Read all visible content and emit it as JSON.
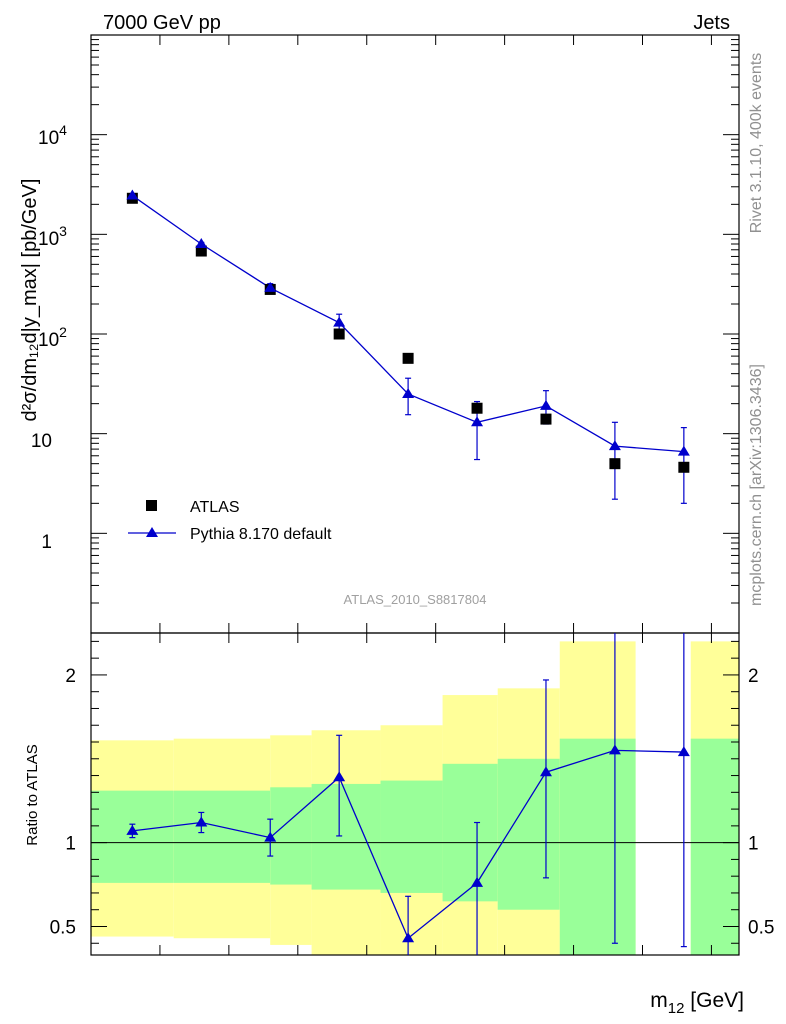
{
  "header": {
    "left": "7000 GeV pp",
    "right": "Jets"
  },
  "side_labels": {
    "rivet": "Rivet 3.1.10,  400k events",
    "mcplots": "mcplots.cern.ch [arXiv:1306.3436]"
  },
  "analysis_id": "ATLAS_2010_S8817804",
  "chart_data": {
    "type": "scatter",
    "main": {
      "ylabel": "d²σ/dm₁₂d|y_max| [pb/GeV]",
      "yscale": "log",
      "ylim": [
        0.1,
        100000
      ],
      "ytick_values": [
        1,
        10,
        100,
        1000,
        10000
      ],
      "ytick_labels": {
        "t1": "1",
        "t10": "10",
        "t100_base": "10",
        "t100_exp": "2",
        "t1000_base": "10",
        "t1000_exp": "3",
        "t10000_base": "10",
        "t10000_exp": "4"
      },
      "series": [
        {
          "name": "ATLAS",
          "marker": "square",
          "color": "#000000",
          "x": [
            1,
            2,
            3,
            4,
            5,
            6,
            7,
            8,
            9
          ],
          "values": [
            2300,
            680,
            280,
            100,
            57,
            18,
            14,
            5.0,
            4.6
          ]
        },
        {
          "name": "Pythia 8.170 default",
          "marker": "triangle",
          "color": "#0000cc",
          "x": [
            1,
            2,
            3,
            4,
            5,
            6,
            7,
            8,
            9
          ],
          "values": [
            2450,
            800,
            290,
            130,
            25,
            13,
            19,
            7.5,
            6.6
          ],
          "err_low": [
            2350,
            770,
            265,
            112,
            15.5,
            5.5,
            12.5,
            2.2,
            2.0
          ],
          "err_high": [
            2550,
            830,
            320,
            158,
            36,
            21,
            27,
            13,
            11.5
          ]
        }
      ]
    },
    "ratio": {
      "ylabel": "Ratio to ATLAS",
      "ylim": [
        0.33,
        2.25
      ],
      "ytick_values": [
        0.5,
        1,
        2
      ],
      "ytick_labels": [
        "0.5",
        "1",
        "2"
      ],
      "xlabel_base": "m",
      "xlabel_sub": "12",
      "xlabel_unit": " [GeV]",
      "reference": 1,
      "pythia_ratio": {
        "x": [
          1,
          2,
          3,
          4,
          5,
          6,
          7,
          8,
          9
        ],
        "values": [
          1.07,
          1.12,
          1.03,
          1.39,
          0.43,
          0.76,
          1.42,
          1.55,
          1.54
        ],
        "err_low": [
          1.03,
          1.06,
          0.92,
          1.04,
          0.28,
          0.25,
          0.79,
          0.4,
          0.38
        ],
        "err_high": [
          1.11,
          1.18,
          1.14,
          1.64,
          0.68,
          1.12,
          1.97,
          2.4,
          2.4
        ]
      },
      "bands": [
        {
          "bin": [
            0.4,
            1.6
          ],
          "green": [
            0.76,
            1.31
          ],
          "yellow": [
            0.44,
            1.61
          ]
        },
        {
          "bin": [
            1.6,
            3.0
          ],
          "green": [
            0.76,
            1.31
          ],
          "yellow": [
            0.43,
            1.62
          ]
        },
        {
          "bin": [
            3.0,
            3.6
          ],
          "green": [
            0.75,
            1.33
          ],
          "yellow": [
            0.39,
            1.64
          ]
        },
        {
          "bin": [
            3.6,
            4.6
          ],
          "green": [
            0.72,
            1.35
          ],
          "yellow": [
            0.33,
            1.67
          ]
        },
        {
          "bin": [
            4.6,
            5.5
          ],
          "green": [
            0.7,
            1.37
          ],
          "yellow": [
            0.33,
            1.7
          ]
        },
        {
          "bin": [
            5.5,
            6.3
          ],
          "green": [
            0.65,
            1.47
          ],
          "yellow": [
            0.33,
            1.88
          ]
        },
        {
          "bin": [
            6.3,
            7.2
          ],
          "green": [
            0.6,
            1.5
          ],
          "yellow": [
            0.33,
            1.92
          ]
        },
        {
          "bin": [
            7.2,
            8.3
          ],
          "green": [
            0.33,
            1.62
          ],
          "yellow": [
            0.33,
            2.2
          ]
        },
        {
          "bin": [
            9.1,
            9.8
          ],
          "green": [
            0.33,
            1.62
          ],
          "yellow": [
            0.33,
            2.2
          ]
        }
      ]
    },
    "x_domain": [
      0.4,
      9.8
    ]
  }
}
